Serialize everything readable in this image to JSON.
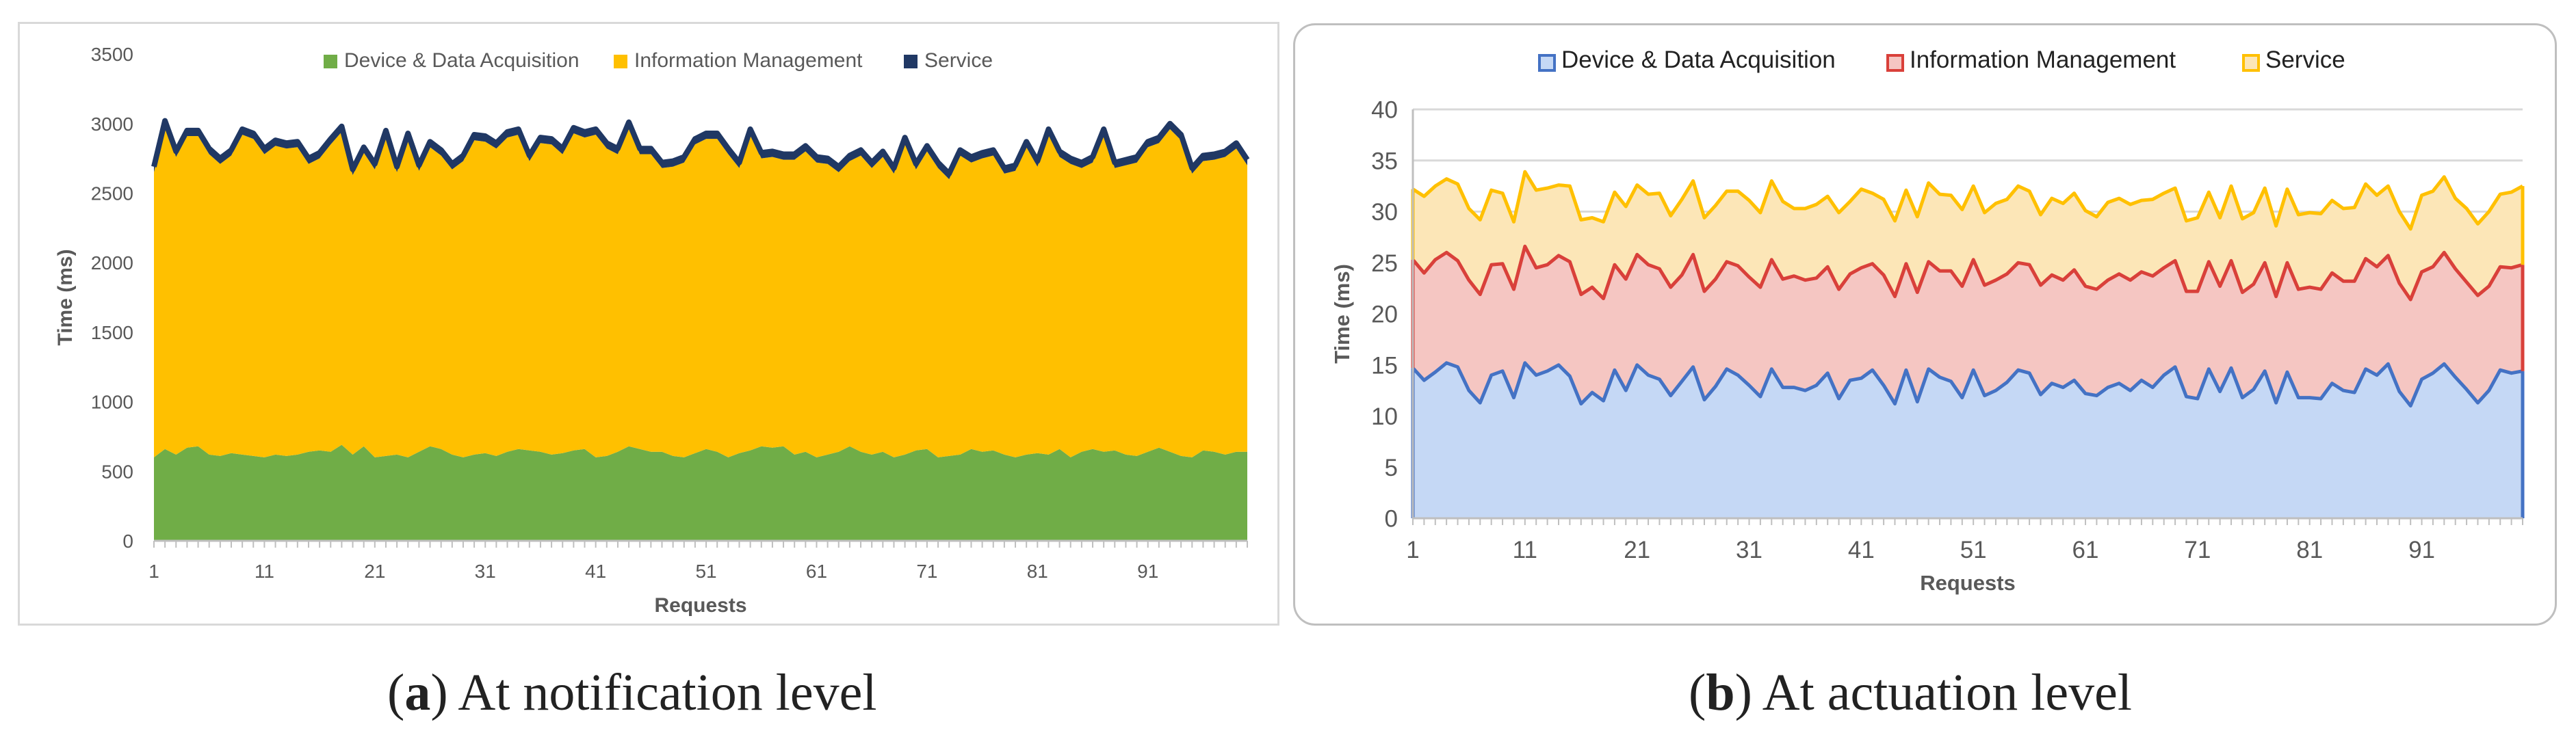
{
  "captions": [
    {
      "letter": "a",
      "paren_open": "(",
      "paren_close": ")",
      "text": " At notification level"
    },
    {
      "letter": "b",
      "paren_open": "(",
      "paren_close": ")",
      "text": " At actuation level"
    }
  ],
  "chart_data": [
    {
      "type": "area",
      "stacked": true,
      "title": "",
      "xlabel": "Requests",
      "ylabel": "Time (ms)",
      "ylim": [
        0,
        3500
      ],
      "xlim": [
        1,
        100
      ],
      "yticks": [
        0,
        500,
        1000,
        1500,
        2000,
        2500,
        3000,
        3500
      ],
      "xticks": [
        1,
        11,
        21,
        31,
        41,
        51,
        61,
        71,
        81,
        91
      ],
      "grid": false,
      "legend_position": "top",
      "x_start": 1,
      "series": [
        {
          "name": "Device & Data Acquisition",
          "color": "#70AD47",
          "values": [
            600,
            660,
            620,
            670,
            680,
            620,
            610,
            630,
            620,
            610,
            600,
            620,
            610,
            620,
            640,
            650,
            640,
            690,
            620,
            680,
            600,
            610,
            620,
            600,
            640,
            680,
            660,
            620,
            600,
            620,
            630,
            610,
            640,
            660,
            650,
            640,
            620,
            630,
            650,
            660,
            600,
            610,
            640,
            680,
            660,
            640,
            640,
            610,
            600,
            630,
            660,
            640,
            600,
            630,
            650,
            680,
            670,
            680,
            620,
            640,
            600,
            620,
            640,
            680,
            640,
            620,
            640,
            600,
            620,
            650,
            660,
            600,
            610,
            620,
            660,
            640,
            650,
            620,
            600,
            620,
            630,
            620,
            660,
            600,
            640,
            660,
            640,
            650,
            620,
            610,
            640,
            670,
            640,
            610,
            600,
            650,
            640,
            620,
            640,
            640
          ]
        },
        {
          "name": "Information Management",
          "color": "#FFC000",
          "values": [
            2050,
            2320,
            2140,
            2240,
            2230,
            2160,
            2100,
            2140,
            2300,
            2280,
            2180,
            2220,
            2210,
            2210,
            2070,
            2100,
            2210,
            2250,
            2010,
            2110,
            2070,
            2300,
            2030,
            2290,
            2020,
            2150,
            2110,
            2050,
            2130,
            2260,
            2240,
            2210,
            2260,
            2260,
            2080,
            2220,
            2230,
            2150,
            2280,
            2240,
            2320,
            2210,
            2140,
            2290,
            2120,
            2140,
            2040,
            2080,
            2120,
            2220,
            2230,
            2250,
            2180,
            2050,
            2270,
            2070,
            2090,
            2060,
            2120,
            2160,
            2120,
            2090,
            2010,
            2050,
            2130,
            2060,
            2120,
            2040,
            2240,
            2020,
            2140,
            2080,
            1990,
            2150,
            2060,
            2110,
            2120,
            2020,
            2060,
            2210,
            2060,
            2300,
            2100,
            2110,
            2040,
            2060,
            2280,
            2030,
            2080,
            2110,
            2190,
            2190,
            2320,
            2270,
            2040,
            2080,
            2100,
            2140,
            2180,
            2060
          ]
        },
        {
          "name": "Service",
          "color": "#203864",
          "values": [
            40,
            40,
            40,
            40,
            40,
            40,
            40,
            40,
            40,
            40,
            40,
            40,
            40,
            40,
            40,
            40,
            40,
            40,
            40,
            40,
            40,
            40,
            40,
            40,
            40,
            40,
            40,
            40,
            40,
            40,
            40,
            40,
            40,
            40,
            40,
            40,
            40,
            40,
            40,
            40,
            40,
            40,
            40,
            40,
            40,
            40,
            40,
            40,
            40,
            40,
            40,
            40,
            40,
            40,
            40,
            40,
            40,
            40,
            40,
            40,
            40,
            40,
            40,
            40,
            40,
            40,
            40,
            40,
            40,
            40,
            40,
            40,
            40,
            40,
            40,
            40,
            40,
            40,
            40,
            40,
            40,
            40,
            40,
            40,
            40,
            40,
            40,
            40,
            40,
            40,
            40,
            40,
            40,
            40,
            40,
            40,
            40,
            40,
            40,
            40
          ]
        }
      ]
    },
    {
      "type": "area",
      "stacked": true,
      "title": "",
      "xlabel": "Requests",
      "ylabel": "Time (ms)",
      "ylim": [
        0,
        40
      ],
      "xlim": [
        1,
        100
      ],
      "yticks": [
        0,
        5,
        10,
        15,
        20,
        25,
        30,
        35,
        40
      ],
      "xticks": [
        1,
        11,
        21,
        31,
        41,
        51,
        61,
        71,
        81,
        91
      ],
      "grid": true,
      "legend_position": "top",
      "x_start": 1,
      "series": [
        {
          "name": "Device & Data Acquisition",
          "color": "#4472C4",
          "fill": "#C5D8F5",
          "values": [
            14.7,
            13.5,
            14.3,
            15.2,
            14.8,
            12.5,
            11.3,
            14.0,
            14.4,
            11.8,
            15.2,
            14.0,
            14.4,
            15.0,
            13.9,
            11.2,
            12.3,
            11.5,
            14.5,
            12.5,
            15.0,
            14.0,
            13.6,
            12.0,
            13.4,
            14.8,
            11.6,
            12.9,
            14.6,
            14.0,
            13.0,
            11.9,
            14.6,
            12.8,
            12.8,
            12.5,
            13.0,
            14.2,
            11.7,
            13.5,
            13.7,
            14.5,
            13.0,
            11.2,
            14.5,
            11.4,
            14.6,
            13.8,
            13.4,
            11.8,
            14.5,
            12.0,
            12.5,
            13.3,
            14.5,
            14.2,
            12.1,
            13.2,
            12.8,
            13.5,
            12.2,
            12.0,
            12.8,
            13.2,
            12.5,
            13.5,
            12.8,
            14.0,
            14.8,
            11.9,
            11.7,
            14.6,
            12.4,
            14.7,
            11.8,
            12.6,
            14.4,
            11.3,
            14.3,
            11.8,
            11.8,
            11.7,
            13.2,
            12.5,
            12.3,
            14.6,
            14.0,
            15.1,
            12.4,
            11.0,
            13.6,
            14.2,
            15.1,
            13.8,
            12.6,
            11.3,
            12.5,
            14.5,
            14.2,
            14.4
          ]
        },
        {
          "name": "Information Management",
          "color": "#D9403A",
          "fill": "#F5C6C2",
          "values": [
            10.6,
            10.5,
            11.0,
            10.8,
            10.4,
            10.8,
            10.6,
            10.8,
            10.5,
            10.6,
            11.4,
            10.5,
            10.4,
            10.7,
            11.2,
            10.7,
            10.3,
            10.0,
            10.3,
            10.9,
            10.8,
            10.8,
            10.8,
            10.6,
            10.4,
            11.0,
            10.6,
            10.5,
            10.5,
            10.7,
            10.6,
            10.7,
            10.7,
            10.6,
            10.9,
            10.8,
            10.5,
            10.4,
            10.7,
            10.4,
            10.8,
            10.4,
            10.8,
            10.5,
            10.4,
            10.7,
            10.5,
            10.4,
            10.8,
            10.9,
            10.8,
            10.8,
            10.8,
            10.6,
            10.5,
            10.6,
            10.7,
            10.6,
            10.5,
            10.8,
            10.5,
            10.4,
            10.5,
            10.7,
            10.8,
            10.6,
            10.9,
            10.5,
            10.4,
            10.3,
            10.5,
            10.5,
            10.3,
            10.5,
            10.3,
            10.3,
            10.6,
            10.4,
            10.7,
            10.6,
            10.8,
            10.7,
            10.8,
            10.7,
            10.9,
            10.8,
            10.6,
            10.6,
            10.6,
            10.4,
            10.5,
            10.4,
            10.9,
            10.6,
            10.5,
            10.5,
            10.2,
            10.1,
            10.3,
            10.4
          ]
        },
        {
          "name": "Service",
          "color": "#FFC000",
          "fill": "#FCE6B7",
          "values": [
            6.9,
            7.5,
            7.2,
            7.2,
            7.5,
            7.0,
            7.3,
            7.3,
            6.9,
            6.6,
            7.3,
            7.6,
            7.5,
            6.9,
            7.4,
            7.3,
            6.8,
            7.5,
            7.1,
            7.1,
            6.8,
            6.9,
            7.4,
            7.0,
            7.4,
            7.2,
            7.2,
            7.2,
            6.9,
            7.3,
            7.5,
            7.3,
            7.7,
            7.6,
            6.6,
            7.0,
            7.2,
            6.9,
            7.5,
            7.1,
            7.7,
            6.9,
            7.4,
            7.4,
            7.2,
            7.4,
            7.7,
            7.5,
            7.4,
            7.5,
            7.2,
            7.1,
            7.5,
            7.3,
            7.5,
            7.2,
            6.9,
            7.5,
            7.5,
            7.5,
            7.4,
            7.1,
            7.6,
            7.4,
            7.4,
            7.0,
            7.5,
            7.3,
            7.1,
            6.9,
            7.2,
            6.8,
            6.7,
            7.3,
            7.2,
            7.0,
            7.3,
            6.9,
            7.2,
            7.3,
            7.3,
            7.4,
            7.1,
            7.1,
            7.2,
            7.3,
            7.0,
            6.8,
            7.0,
            6.9,
            7.5,
            7.4,
            7.4,
            6.9,
            7.2,
            7.0,
            7.3,
            7.1,
            7.4,
            7.7
          ]
        }
      ]
    }
  ]
}
